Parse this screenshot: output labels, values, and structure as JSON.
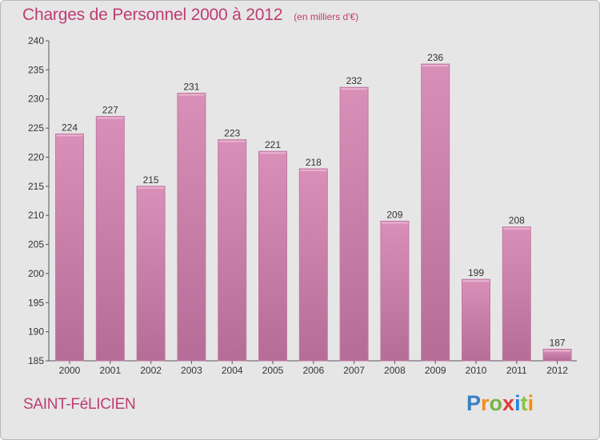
{
  "title": "Charges de Personnel 2000 à 2012",
  "unit": "(en milliers d'€)",
  "place": "SAINT-FéLICIEN",
  "logo": {
    "letters": [
      "P",
      "r",
      "o",
      "x",
      "i",
      "t",
      "i"
    ],
    "colors": [
      "#3a7fc1",
      "#f08c1e",
      "#7cb342",
      "#e53935",
      "#1e88e5",
      "#8bc34a",
      "#fb8c00"
    ]
  },
  "colors": {
    "bar": "#d98fb8",
    "bar_dark": "#b56d97",
    "accent": "#bf3c72",
    "background": "#e6e6e6"
  },
  "chart_data": {
    "type": "bar",
    "title": "Charges de Personnel 2000 à 2012",
    "subtitle": "(en milliers d'€)",
    "xlabel": "",
    "ylabel": "",
    "categories": [
      "2000",
      "2001",
      "2002",
      "2003",
      "2004",
      "2005",
      "2006",
      "2007",
      "2008",
      "2009",
      "2010",
      "2011",
      "2012"
    ],
    "values": [
      224,
      227,
      215,
      231,
      223,
      221,
      218,
      232,
      209,
      236,
      199,
      208,
      187
    ],
    "ylim": [
      185,
      240
    ],
    "yticks": [
      185,
      190,
      195,
      200,
      205,
      210,
      215,
      220,
      225,
      230,
      235,
      240
    ],
    "grid": false,
    "data_labels": true
  }
}
